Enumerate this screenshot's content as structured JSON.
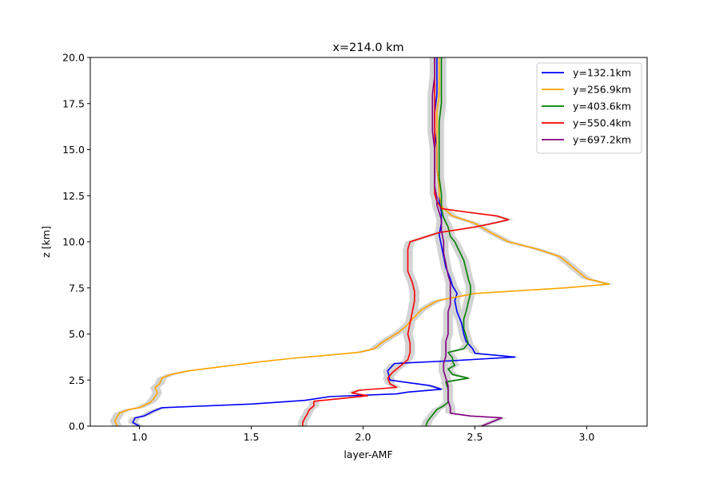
{
  "chart_data": {
    "type": "line",
    "title": "x=214.0 km",
    "xlabel": "layer-AMF",
    "ylabel": "z [km]",
    "xlim": [
      0.78,
      3.27
    ],
    "ylim": [
      0,
      20
    ],
    "xticks": [
      1.0,
      1.5,
      2.0,
      2.5,
      3.0
    ],
    "xtick_labels": [
      "1.0",
      "1.5",
      "2.0",
      "2.5",
      "3.0"
    ],
    "yticks": [
      0,
      2.5,
      5,
      7.5,
      10,
      12.5,
      15,
      17.5,
      20
    ],
    "ytick_labels": [
      "0.0",
      "2.5",
      "5.0",
      "7.5",
      "10.0",
      "12.5",
      "15.0",
      "17.5",
      "20.0"
    ],
    "grid": false,
    "legend_position": "top-right",
    "uncertainty_band_color": "#d3d3d3",
    "series": [
      {
        "name": "y=132.1km",
        "color": "#0000ff",
        "points": [
          [
            1.0,
            0.0
          ],
          [
            0.97,
            0.2
          ],
          [
            0.98,
            0.45
          ],
          [
            1.02,
            0.55
          ],
          [
            1.06,
            0.8
          ],
          [
            1.1,
            1.0
          ],
          [
            1.5,
            1.2
          ],
          [
            1.74,
            1.4
          ],
          [
            1.85,
            1.6
          ],
          [
            2.15,
            1.75
          ],
          [
            2.2,
            1.85
          ],
          [
            2.35,
            2.0
          ],
          [
            2.3,
            2.2
          ],
          [
            2.12,
            2.5
          ],
          [
            2.11,
            3.0
          ],
          [
            2.14,
            3.4
          ],
          [
            2.4,
            3.55
          ],
          [
            2.68,
            3.75
          ],
          [
            2.5,
            3.95
          ],
          [
            2.49,
            4.2
          ],
          [
            2.46,
            4.6
          ],
          [
            2.45,
            5.0
          ],
          [
            2.44,
            5.6
          ],
          [
            2.42,
            6.2
          ],
          [
            2.41,
            6.8
          ],
          [
            2.42,
            7.2
          ],
          [
            2.4,
            7.6
          ],
          [
            2.39,
            8.0
          ],
          [
            2.37,
            8.6
          ],
          [
            2.36,
            9.2
          ],
          [
            2.35,
            9.8
          ],
          [
            2.34,
            10.4
          ],
          [
            2.35,
            11.0
          ],
          [
            2.35,
            11.6
          ],
          [
            2.34,
            12.2
          ],
          [
            2.34,
            13.0
          ],
          [
            2.33,
            14.0
          ],
          [
            2.33,
            15.0
          ],
          [
            2.32,
            16.0
          ],
          [
            2.32,
            17.0
          ],
          [
            2.33,
            18.0
          ],
          [
            2.33,
            19.0
          ],
          [
            2.33,
            20.0
          ]
        ]
      },
      {
        "name": "y=256.9km",
        "color": "#ffa500",
        "points": [
          [
            0.9,
            0.0
          ],
          [
            0.89,
            0.3
          ],
          [
            0.9,
            0.5
          ],
          [
            0.91,
            0.7
          ],
          [
            0.95,
            0.9
          ],
          [
            1.0,
            1.0
          ],
          [
            1.05,
            1.3
          ],
          [
            1.07,
            1.6
          ],
          [
            1.08,
            1.8
          ],
          [
            1.07,
            2.1
          ],
          [
            1.09,
            2.3
          ],
          [
            1.1,
            2.6
          ],
          [
            1.14,
            2.8
          ],
          [
            1.22,
            3.0
          ],
          [
            1.35,
            3.2
          ],
          [
            1.55,
            3.5
          ],
          [
            1.7,
            3.7
          ],
          [
            1.8,
            3.8
          ],
          [
            1.98,
            4.0
          ],
          [
            2.05,
            4.2
          ],
          [
            2.08,
            4.5
          ],
          [
            2.12,
            4.8
          ],
          [
            2.16,
            5.1
          ],
          [
            2.19,
            5.4
          ],
          [
            2.22,
            5.8
          ],
          [
            2.26,
            6.3
          ],
          [
            2.33,
            6.8
          ],
          [
            2.5,
            7.2
          ],
          [
            2.9,
            7.5
          ],
          [
            3.1,
            7.7
          ],
          [
            3.0,
            8.0
          ],
          [
            2.95,
            8.5
          ],
          [
            2.88,
            9.2
          ],
          [
            2.78,
            9.6
          ],
          [
            2.65,
            10.0
          ],
          [
            2.57,
            10.5
          ],
          [
            2.5,
            11.0
          ],
          [
            2.4,
            11.4
          ],
          [
            2.36,
            11.8
          ],
          [
            2.35,
            12.0
          ],
          [
            2.34,
            12.5
          ],
          [
            2.34,
            13.0
          ],
          [
            2.33,
            14.0
          ],
          [
            2.33,
            15.0
          ],
          [
            2.33,
            16.0
          ],
          [
            2.33,
            17.0
          ],
          [
            2.34,
            18.0
          ],
          [
            2.34,
            19.0
          ],
          [
            2.34,
            20.0
          ]
        ]
      },
      {
        "name": "y=403.6km",
        "color": "#008000",
        "points": [
          [
            2.28,
            0.0
          ],
          [
            2.29,
            0.3
          ],
          [
            2.31,
            0.6
          ],
          [
            2.33,
            0.9
          ],
          [
            2.36,
            1.1
          ],
          [
            2.38,
            1.3
          ],
          [
            2.38,
            1.8
          ],
          [
            2.38,
            2.0
          ],
          [
            2.37,
            2.4
          ],
          [
            2.47,
            2.6
          ],
          [
            2.4,
            2.8
          ],
          [
            2.38,
            3.1
          ],
          [
            2.41,
            3.3
          ],
          [
            2.4,
            3.5
          ],
          [
            2.4,
            3.7
          ],
          [
            2.38,
            4.0
          ],
          [
            2.45,
            4.2
          ],
          [
            2.47,
            4.5
          ],
          [
            2.46,
            4.9
          ],
          [
            2.45,
            5.3
          ],
          [
            2.45,
            5.8
          ],
          [
            2.46,
            6.2
          ],
          [
            2.47,
            6.7
          ],
          [
            2.48,
            7.2
          ],
          [
            2.48,
            7.6
          ],
          [
            2.47,
            8.0
          ],
          [
            2.46,
            8.5
          ],
          [
            2.45,
            9.0
          ],
          [
            2.43,
            9.5
          ],
          [
            2.41,
            10.0
          ],
          [
            2.39,
            10.3
          ],
          [
            2.38,
            10.8
          ],
          [
            2.36,
            11.3
          ],
          [
            2.35,
            11.8
          ],
          [
            2.35,
            12.2
          ],
          [
            2.35,
            12.6
          ],
          [
            2.34,
            13.5
          ],
          [
            2.34,
            14.5
          ],
          [
            2.34,
            15.5
          ],
          [
            2.34,
            16.5
          ],
          [
            2.35,
            17.5
          ],
          [
            2.35,
            18.5
          ],
          [
            2.35,
            19.5
          ],
          [
            2.35,
            20.0
          ]
        ]
      },
      {
        "name": "y=550.4km",
        "color": "#ff0000",
        "points": [
          [
            1.73,
            0.0
          ],
          [
            1.73,
            0.2
          ],
          [
            1.74,
            0.45
          ],
          [
            1.75,
            0.65
          ],
          [
            1.76,
            0.9
          ],
          [
            1.78,
            1.1
          ],
          [
            1.78,
            1.35
          ],
          [
            1.9,
            1.5
          ],
          [
            2.02,
            1.65
          ],
          [
            1.95,
            1.8
          ],
          [
            1.98,
            1.95
          ],
          [
            2.15,
            2.1
          ],
          [
            2.12,
            2.3
          ],
          [
            2.11,
            2.6
          ],
          [
            2.13,
            2.9
          ],
          [
            2.16,
            3.2
          ],
          [
            2.2,
            3.6
          ],
          [
            2.21,
            4.0
          ],
          [
            2.21,
            4.5
          ],
          [
            2.2,
            5.0
          ],
          [
            2.21,
            5.6
          ],
          [
            2.22,
            6.2
          ],
          [
            2.23,
            6.8
          ],
          [
            2.23,
            7.3
          ],
          [
            2.22,
            7.8
          ],
          [
            2.2,
            8.4
          ],
          [
            2.2,
            9.0
          ],
          [
            2.2,
            9.6
          ],
          [
            2.21,
            10.0
          ],
          [
            2.34,
            10.5
          ],
          [
            2.5,
            10.8
          ],
          [
            2.58,
            11.0
          ],
          [
            2.65,
            11.2
          ],
          [
            2.6,
            11.4
          ],
          [
            2.47,
            11.6
          ],
          [
            2.35,
            11.8
          ],
          [
            2.33,
            12.2
          ],
          [
            2.32,
            12.6
          ],
          [
            2.32,
            13.5
          ],
          [
            2.32,
            14.5
          ],
          [
            2.32,
            15.5
          ],
          [
            2.32,
            16.5
          ],
          [
            2.32,
            17.5
          ],
          [
            2.32,
            18.5
          ],
          [
            2.32,
            19.5
          ],
          [
            2.32,
            20.0
          ]
        ]
      },
      {
        "name": "y=697.2km",
        "color": "#800080",
        "points": [
          [
            2.53,
            0.0
          ],
          [
            2.57,
            0.2
          ],
          [
            2.62,
            0.45
          ],
          [
            2.48,
            0.55
          ],
          [
            2.39,
            0.7
          ],
          [
            2.39,
            1.0
          ],
          [
            2.38,
            1.4
          ],
          [
            2.38,
            1.8
          ],
          [
            2.38,
            2.2
          ],
          [
            2.37,
            2.6
          ],
          [
            2.36,
            3.0
          ],
          [
            2.36,
            3.4
          ],
          [
            2.37,
            3.8
          ],
          [
            2.37,
            4.2
          ],
          [
            2.37,
            4.6
          ],
          [
            2.38,
            5.0
          ],
          [
            2.38,
            5.4
          ],
          [
            2.38,
            5.8
          ],
          [
            2.38,
            6.2
          ],
          [
            2.39,
            6.6
          ],
          [
            2.39,
            7.0
          ],
          [
            2.39,
            7.4
          ],
          [
            2.39,
            7.8
          ],
          [
            2.38,
            8.2
          ],
          [
            2.37,
            8.8
          ],
          [
            2.36,
            9.4
          ],
          [
            2.36,
            10.0
          ],
          [
            2.35,
            10.6
          ],
          [
            2.35,
            11.2
          ],
          [
            2.34,
            11.6
          ],
          [
            2.33,
            12.0
          ],
          [
            2.33,
            12.4
          ],
          [
            2.32,
            13.0
          ],
          [
            2.32,
            14.0
          ],
          [
            2.32,
            15.0
          ],
          [
            2.31,
            16.0
          ],
          [
            2.31,
            17.0
          ],
          [
            2.31,
            18.0
          ],
          [
            2.32,
            19.0
          ],
          [
            2.32,
            20.0
          ]
        ]
      }
    ]
  }
}
